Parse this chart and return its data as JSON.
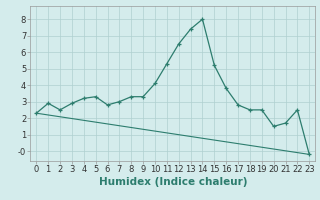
{
  "xlabel": "Humidex (Indice chaleur)",
  "xlim": [
    -0.5,
    23.5
  ],
  "ylim": [
    -0.6,
    8.8
  ],
  "yticks": [
    0,
    1,
    2,
    3,
    4,
    5,
    6,
    7,
    8
  ],
  "ytick_labels": [
    "-0",
    "1",
    "2",
    "3",
    "4",
    "5",
    "6",
    "7",
    "8"
  ],
  "xticks": [
    0,
    1,
    2,
    3,
    4,
    5,
    6,
    7,
    8,
    9,
    10,
    11,
    12,
    13,
    14,
    15,
    16,
    17,
    18,
    19,
    20,
    21,
    22,
    23
  ],
  "line1_x": [
    0,
    1,
    2,
    3,
    4,
    5,
    6,
    7,
    8,
    9,
    10,
    11,
    12,
    13,
    14,
    15,
    16,
    17,
    18,
    19,
    20,
    21,
    22,
    23
  ],
  "line1_y": [
    2.3,
    2.9,
    2.5,
    2.9,
    3.2,
    3.3,
    2.8,
    3.0,
    3.3,
    3.3,
    4.1,
    5.3,
    6.5,
    7.4,
    8.0,
    5.2,
    3.8,
    2.8,
    2.5,
    2.5,
    1.5,
    1.7,
    2.5,
    -0.2
  ],
  "line2_x": [
    0,
    23
  ],
  "line2_y": [
    2.3,
    -0.2
  ],
  "line_color": "#2d7d6e",
  "bg_color": "#d4ecec",
  "grid_color": "#afd0d0",
  "tick_fontsize": 6.0,
  "label_fontsize": 7.5
}
